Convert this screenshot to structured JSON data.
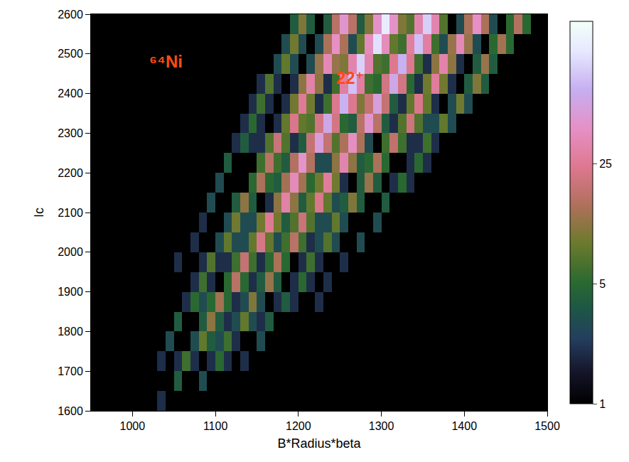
{
  "chart_data": {
    "type": "heatmap",
    "x_label": "B*Radius*beta",
    "y_label": "Ic",
    "xlim": [
      950,
      1500
    ],
    "xticks": [
      1000,
      1100,
      1200,
      1300,
      1400,
      1500
    ],
    "ylim": [
      1600,
      2600
    ],
    "yticks": [
      1600,
      1700,
      1800,
      1900,
      2000,
      2100,
      2200,
      2300,
      2400,
      2500,
      2600
    ],
    "grid": false,
    "annotations": [
      {
        "text": "⁶⁴Ni",
        "x": 1040,
        "y": 2480
      },
      {
        "text": "22⁺",
        "x": 1262,
        "y": 2440
      }
    ],
    "colorbar": {
      "zlim": [
        1,
        170
      ],
      "zticks": [
        1,
        5,
        25
      ],
      "log": true
    },
    "x": [
      955,
      965,
      975,
      985,
      995,
      1005,
      1015,
      1025,
      1035,
      1045,
      1055,
      1065,
      1075,
      1085,
      1095,
      1105,
      1115,
      1125,
      1135,
      1145,
      1155,
      1165,
      1175,
      1185,
      1195,
      1205,
      1215,
      1225,
      1235,
      1245,
      1255,
      1265,
      1275,
      1285,
      1295,
      1305,
      1315,
      1325,
      1335,
      1345,
      1355,
      1365,
      1375,
      1385,
      1395,
      1405,
      1415,
      1425,
      1435,
      1445,
      1455,
      1465,
      1475,
      1485,
      1495
    ],
    "y": [
      1625,
      1675,
      1725,
      1775,
      1825,
      1875,
      1925,
      1975,
      2025,
      2075,
      2125,
      2175,
      2225,
      2275,
      2325,
      2375,
      2425,
      2475,
      2525,
      2575
    ],
    "z": [
      [
        0,
        0,
        0,
        0,
        0,
        1,
        0,
        1,
        2,
        1,
        0,
        0,
        1,
        0,
        0,
        1,
        0,
        0,
        0,
        0,
        0,
        0,
        0,
        0,
        0,
        0,
        0,
        0,
        0,
        0,
        0,
        0,
        0,
        0,
        0,
        0,
        0,
        0,
        0,
        0,
        0,
        0,
        0,
        0,
        0,
        0,
        0,
        0,
        0,
        0,
        0,
        0,
        0,
        0,
        0
      ],
      [
        0,
        0,
        0,
        0,
        0,
        0,
        1,
        0,
        0,
        1,
        4,
        1,
        1,
        3,
        1,
        0,
        1,
        0,
        0,
        0,
        0,
        0,
        0,
        0,
        0,
        0,
        0,
        0,
        0,
        0,
        0,
        0,
        0,
        0,
        0,
        0,
        0,
        0,
        0,
        0,
        0,
        0,
        0,
        0,
        0,
        0,
        0,
        0,
        0,
        0,
        0,
        0,
        0,
        0,
        0
      ],
      [
        0,
        0,
        0,
        0,
        1,
        0,
        0,
        1,
        2,
        1,
        2,
        6,
        2,
        0,
        2,
        5,
        2,
        1,
        2,
        1,
        0,
        1,
        0,
        0,
        0,
        0,
        0,
        0,
        0,
        0,
        0,
        0,
        0,
        0,
        0,
        0,
        0,
        0,
        0,
        0,
        0,
        0,
        0,
        0,
        0,
        0,
        0,
        0,
        0,
        0,
        0,
        0,
        0,
        0,
        0
      ],
      [
        0,
        0,
        0,
        0,
        0,
        1,
        0,
        0,
        1,
        3,
        1,
        1,
        3,
        8,
        4,
        3,
        6,
        2,
        1,
        1,
        3,
        1,
        0,
        1,
        0,
        0,
        0,
        0,
        0,
        0,
        0,
        0,
        0,
        0,
        0,
        0,
        0,
        0,
        0,
        0,
        0,
        0,
        0,
        0,
        0,
        0,
        0,
        0,
        0,
        0,
        0,
        0,
        0,
        0,
        0
      ],
      [
        0,
        0,
        0,
        0,
        0,
        0,
        0,
        1,
        0,
        1,
        4,
        1,
        1,
        4,
        11,
        4,
        2,
        3,
        8,
        3,
        2,
        4,
        1,
        0,
        0,
        1,
        0,
        0,
        0,
        0,
        0,
        0,
        0,
        0,
        0,
        0,
        0,
        0,
        0,
        0,
        0,
        0,
        0,
        0,
        0,
        0,
        0,
        0,
        0,
        0,
        0,
        0,
        0,
        0,
        0
      ],
      [
        0,
        0,
        0,
        0,
        0,
        0,
        0,
        0,
        1,
        0,
        0,
        2,
        5,
        3,
        5,
        13,
        5,
        2,
        3,
        10,
        3,
        1,
        2,
        4,
        2,
        0,
        1,
        2,
        1,
        0,
        0,
        0,
        0,
        0,
        0,
        0,
        0,
        0,
        0,
        0,
        0,
        0,
        0,
        0,
        0,
        0,
        0,
        0,
        0,
        0,
        0,
        0,
        0,
        0,
        0
      ],
      [
        0,
        0,
        0,
        0,
        0,
        0,
        0,
        0,
        0,
        1,
        0,
        0,
        2,
        6,
        2,
        1,
        5,
        16,
        5,
        2,
        4,
        12,
        4,
        1,
        2,
        5,
        2,
        1,
        2,
        1,
        0,
        0,
        0,
        0,
        0,
        0,
        0,
        0,
        0,
        0,
        0,
        0,
        0,
        0,
        0,
        0,
        0,
        0,
        0,
        0,
        0,
        0,
        0,
        0,
        0
      ],
      [
        0,
        0,
        0,
        0,
        0,
        0,
        0,
        0,
        0,
        1,
        2,
        1,
        1,
        2,
        7,
        2,
        2,
        6,
        18,
        6,
        2,
        5,
        14,
        5,
        1,
        2,
        6,
        2,
        0,
        1,
        2,
        1,
        0,
        0,
        0,
        0,
        0,
        0,
        0,
        0,
        0,
        0,
        0,
        0,
        0,
        0,
        0,
        0,
        0,
        0,
        0,
        0,
        0,
        0,
        0
      ],
      [
        0,
        0,
        0,
        0,
        0,
        0,
        0,
        0,
        0,
        0,
        0,
        1,
        2,
        1,
        1,
        3,
        8,
        3,
        3,
        8,
        22,
        8,
        3,
        6,
        16,
        6,
        2,
        3,
        7,
        3,
        1,
        1,
        3,
        1,
        0,
        0,
        0,
        0,
        0,
        0,
        0,
        0,
        0,
        0,
        0,
        0,
        0,
        0,
        0,
        0,
        0,
        0,
        0,
        0,
        0
      ],
      [
        0,
        0,
        0,
        0,
        0,
        0,
        0,
        0,
        0,
        0,
        0,
        0,
        1,
        2,
        1,
        1,
        3,
        9,
        3,
        3,
        9,
        25,
        9,
        4,
        7,
        19,
        7,
        3,
        3,
        8,
        3,
        1,
        0,
        1,
        3,
        1,
        0,
        0,
        0,
        0,
        0,
        0,
        0,
        0,
        0,
        0,
        0,
        0,
        0,
        0,
        0,
        0,
        0,
        0,
        0
      ],
      [
        0,
        0,
        0,
        0,
        0,
        0,
        0,
        0,
        0,
        0,
        0,
        0,
        0,
        1,
        3,
        1,
        1,
        4,
        11,
        4,
        1,
        2,
        11,
        30,
        11,
        4,
        8,
        23,
        8,
        3,
        4,
        10,
        4,
        1,
        1,
        4,
        1,
        0,
        0,
        0,
        0,
        0,
        0,
        0,
        0,
        0,
        0,
        0,
        0,
        0,
        0,
        0,
        0,
        0,
        0
      ],
      [
        0,
        0,
        0,
        0,
        0,
        0,
        0,
        0,
        0,
        0,
        0,
        0,
        0,
        0,
        1,
        3,
        1,
        0,
        1,
        5,
        14,
        5,
        4,
        13,
        36,
        13,
        5,
        9,
        27,
        9,
        2,
        1,
        4,
        12,
        4,
        1,
        2,
        5,
        2,
        0,
        0,
        0,
        0,
        0,
        0,
        0,
        0,
        0,
        0,
        0,
        0,
        0,
        0,
        0,
        0
      ],
      [
        0,
        0,
        0,
        0,
        0,
        0,
        0,
        0,
        0,
        0,
        0,
        0,
        0,
        0,
        0,
        1,
        4,
        1,
        0,
        1,
        6,
        16,
        6,
        4,
        15,
        43,
        15,
        3,
        3,
        11,
        32,
        11,
        4,
        5,
        14,
        5,
        1,
        0,
        2,
        5,
        2,
        0,
        0,
        0,
        0,
        0,
        0,
        0,
        0,
        0,
        0,
        0,
        0,
        0,
        0
      ],
      [
        0,
        0,
        0,
        0,
        0,
        0,
        0,
        0,
        0,
        0,
        0,
        0,
        0,
        0,
        0,
        0,
        0,
        2,
        4,
        2,
        2,
        7,
        19,
        7,
        2,
        4,
        18,
        52,
        18,
        7,
        14,
        39,
        14,
        3,
        1,
        6,
        17,
        6,
        2,
        2,
        6,
        2,
        1,
        0,
        0,
        0,
        0,
        0,
        0,
        0,
        0,
        0,
        0,
        0,
        0
      ],
      [
        0,
        0,
        0,
        0,
        0,
        0,
        0,
        0,
        0,
        0,
        0,
        0,
        0,
        0,
        0,
        0,
        0,
        0,
        2,
        5,
        2,
        0,
        2,
        8,
        23,
        8,
        7,
        21,
        60,
        21,
        5,
        4,
        16,
        45,
        16,
        4,
        2,
        7,
        20,
        7,
        3,
        3,
        8,
        3,
        1,
        0,
        0,
        0,
        0,
        0,
        0,
        0,
        0,
        0,
        0
      ],
      [
        0,
        0,
        0,
        0,
        0,
        0,
        0,
        0,
        0,
        0,
        0,
        0,
        0,
        0,
        0,
        0,
        0,
        0,
        0,
        2,
        6,
        2,
        0,
        2,
        9,
        26,
        9,
        2,
        6,
        24,
        70,
        24,
        10,
        18,
        52,
        18,
        4,
        2,
        8,
        23,
        8,
        2,
        1,
        3,
        9,
        3,
        1,
        0,
        0,
        0,
        0,
        0,
        0,
        0,
        0
      ],
      [
        0,
        0,
        0,
        0,
        0,
        0,
        0,
        0,
        0,
        0,
        0,
        0,
        0,
        0,
        0,
        0,
        0,
        0,
        0,
        1,
        2,
        7,
        2,
        1,
        2,
        11,
        30,
        11,
        2,
        6,
        28,
        80,
        28,
        6,
        5,
        21,
        60,
        21,
        5,
        2,
        9,
        27,
        9,
        2,
        1,
        4,
        10,
        4,
        1,
        0,
        0,
        0,
        0,
        0,
        0
      ],
      [
        0,
        0,
        0,
        0,
        0,
        0,
        0,
        0,
        0,
        0,
        0,
        0,
        0,
        0,
        0,
        0,
        0,
        0,
        0,
        0,
        0,
        1,
        3,
        8,
        3,
        1,
        3,
        12,
        35,
        12,
        10,
        32,
        92,
        32,
        7,
        6,
        24,
        69,
        24,
        6,
        2,
        11,
        31,
        11,
        2,
        1,
        4,
        12,
        4,
        1,
        0,
        0,
        0,
        0,
        0
      ],
      [
        0,
        0,
        0,
        0,
        0,
        0,
        0,
        0,
        0,
        0,
        0,
        0,
        0,
        0,
        0,
        0,
        0,
        0,
        0,
        0,
        0,
        0,
        1,
        3,
        9,
        3,
        1,
        3,
        14,
        40,
        14,
        3,
        8,
        37,
        106,
        37,
        8,
        6,
        28,
        79,
        28,
        6,
        3,
        12,
        35,
        12,
        3,
        1,
        5,
        13,
        5,
        1,
        0,
        0,
        0
      ],
      [
        0,
        0,
        0,
        0,
        0,
        0,
        0,
        0,
        0,
        0,
        0,
        0,
        0,
        0,
        0,
        0,
        0,
        0,
        0,
        0,
        0,
        0,
        0,
        1,
        4,
        10,
        4,
        1,
        4,
        16,
        45,
        16,
        4,
        10,
        42,
        120,
        42,
        10,
        7,
        32,
        90,
        32,
        7,
        0,
        3,
        14,
        40,
        14,
        3,
        1,
        5,
        15,
        5,
        1,
        0
      ]
    ]
  }
}
